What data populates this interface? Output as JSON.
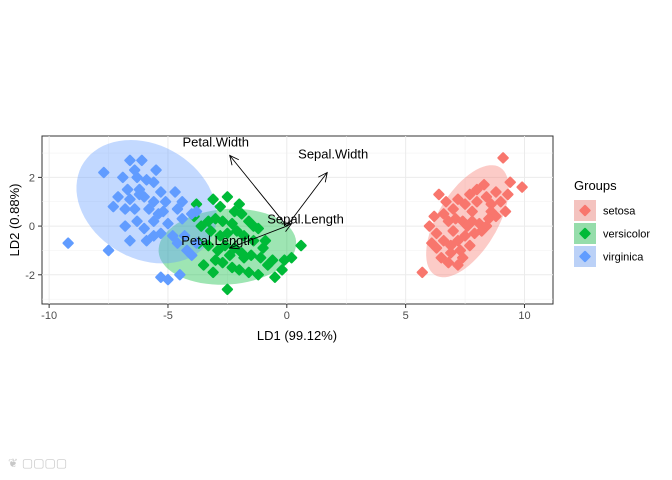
{
  "chart_data": {
    "type": "scatter",
    "xlabel": "LD1 (99.12%)",
    "ylabel": "LD2 (0.88%)",
    "xlim": [
      -10.3,
      11.2
    ],
    "ylim": [
      -3.2,
      3.7
    ],
    "xticks": [
      -10,
      -5,
      0,
      5,
      10
    ],
    "yticks": [
      -2,
      0,
      2
    ],
    "grid": true,
    "legend": {
      "title": "Groups",
      "placement": "right"
    },
    "colors": {
      "setosa": "#F8766D",
      "versicolor": "#00BA38",
      "virginica": "#619CFF"
    },
    "series": [
      {
        "name": "setosa",
        "color": "#F8766D",
        "ellipse": {
          "cx": 7.6,
          "cy": 0.2,
          "rx": 2.6,
          "ry": 1.25,
          "angle": 58
        },
        "points": [
          [
            9.1,
            2.8
          ],
          [
            9.9,
            1.6
          ],
          [
            9.4,
            1.8
          ],
          [
            8.8,
            1.4
          ],
          [
            8.3,
            1.7
          ],
          [
            8.4,
            1.2
          ],
          [
            9.0,
            1.0
          ],
          [
            8.6,
            0.6
          ],
          [
            8.0,
            1.0
          ],
          [
            7.8,
            0.6
          ],
          [
            7.5,
            0.9
          ],
          [
            7.2,
            1.1
          ],
          [
            7.0,
            0.7
          ],
          [
            6.7,
            1.0
          ],
          [
            6.4,
            1.3
          ],
          [
            6.2,
            0.4
          ],
          [
            6.6,
            0.5
          ],
          [
            6.8,
            0.2
          ],
          [
            7.1,
            0.3
          ],
          [
            7.4,
            0.2
          ],
          [
            7.8,
            0.2
          ],
          [
            8.1,
            0.1
          ],
          [
            8.4,
            0.0
          ],
          [
            8.8,
            0.4
          ],
          [
            9.2,
            0.6
          ],
          [
            8.2,
            -0.2
          ],
          [
            7.9,
            -0.3
          ],
          [
            7.5,
            -0.4
          ],
          [
            7.2,
            -0.6
          ],
          [
            6.9,
            -0.8
          ],
          [
            6.6,
            -0.6
          ],
          [
            6.3,
            -0.9
          ],
          [
            6.5,
            -1.3
          ],
          [
            6.9,
            -1.1
          ],
          [
            7.3,
            -1.0
          ],
          [
            7.7,
            -0.8
          ],
          [
            7.4,
            -1.3
          ],
          [
            6.8,
            -1.5
          ],
          [
            5.7,
            -1.9
          ],
          [
            6.1,
            -0.7
          ],
          [
            8.6,
            0.9
          ],
          [
            9.3,
            1.3
          ],
          [
            8.0,
            1.5
          ],
          [
            7.6,
            0.0
          ],
          [
            7.0,
            -0.2
          ],
          [
            6.3,
            -0.3
          ],
          [
            6.0,
            0.0
          ],
          [
            7.2,
            -1.6
          ],
          [
            8.5,
            0.3
          ],
          [
            7.7,
            1.3
          ]
        ]
      },
      {
        "name": "versicolor",
        "color": "#00BA38",
        "ellipse": {
          "cx": -2.5,
          "cy": -0.85,
          "rx": 2.9,
          "ry": 1.55,
          "angle": 4
        },
        "points": [
          [
            -2.5,
            1.2
          ],
          [
            -3.1,
            1.1
          ],
          [
            -3.8,
            0.9
          ],
          [
            -2.2,
            0.6
          ],
          [
            -1.9,
            0.5
          ],
          [
            -3.3,
            0.2
          ],
          [
            -3.0,
            0.3
          ],
          [
            -2.7,
            0.2
          ],
          [
            -2.3,
            0.1
          ],
          [
            -1.6,
            0.2
          ],
          [
            -1.2,
            -0.1
          ],
          [
            -3.6,
            0.0
          ],
          [
            -3.2,
            -0.2
          ],
          [
            -2.8,
            -0.4
          ],
          [
            -2.5,
            -0.3
          ],
          [
            -2.1,
            -0.2
          ],
          [
            -1.8,
            -0.4
          ],
          [
            -1.4,
            -0.6
          ],
          [
            -1.0,
            -0.9
          ],
          [
            0.6,
            -0.8
          ],
          [
            -3.7,
            -0.7
          ],
          [
            -3.3,
            -0.8
          ],
          [
            -2.9,
            -1.0
          ],
          [
            -2.6,
            -0.8
          ],
          [
            -2.2,
            -0.9
          ],
          [
            -1.9,
            -1.1
          ],
          [
            -1.5,
            -1.2
          ],
          [
            -1.1,
            -1.3
          ],
          [
            -0.6,
            -1.4
          ],
          [
            -0.1,
            -1.4
          ],
          [
            0.2,
            -1.3
          ],
          [
            -3.5,
            -1.6
          ],
          [
            -3.0,
            -1.4
          ],
          [
            -2.7,
            -1.5
          ],
          [
            -2.3,
            -1.7
          ],
          [
            -2.0,
            -1.8
          ],
          [
            -1.6,
            -1.9
          ],
          [
            -1.2,
            -2.0
          ],
          [
            -0.5,
            -2.1
          ],
          [
            -0.2,
            -1.8
          ],
          [
            -2.5,
            -2.6
          ],
          [
            -1.8,
            -1.3
          ],
          [
            -3.9,
            0.4
          ],
          [
            -2.0,
            0.9
          ],
          [
            -1.4,
            0.0
          ],
          [
            -0.9,
            -0.6
          ],
          [
            -3.1,
            -1.9
          ],
          [
            -2.4,
            -1.2
          ],
          [
            -0.8,
            -1.6
          ],
          [
            -2.8,
            0.8
          ]
        ]
      },
      {
        "name": "virginica",
        "color": "#619CFF",
        "ellipse": {
          "cx": -5.9,
          "cy": 1.0,
          "rx": 3.1,
          "ry": 2.35,
          "angle": -28
        },
        "points": [
          [
            -6.6,
            2.7
          ],
          [
            -6.1,
            2.7
          ],
          [
            -6.4,
            2.3
          ],
          [
            -5.5,
            2.3
          ],
          [
            -7.7,
            2.2
          ],
          [
            -6.9,
            2.0
          ],
          [
            -6.3,
            2.0
          ],
          [
            -5.9,
            1.9
          ],
          [
            -5.6,
            1.8
          ],
          [
            -6.7,
            1.5
          ],
          [
            -6.2,
            1.5
          ],
          [
            -5.3,
            1.4
          ],
          [
            -4.7,
            1.4
          ],
          [
            -7.1,
            1.2
          ],
          [
            -6.6,
            1.1
          ],
          [
            -6.0,
            1.2
          ],
          [
            -5.6,
            1.0
          ],
          [
            -5.1,
            1.0
          ],
          [
            -4.4,
            1.0
          ],
          [
            -7.3,
            0.8
          ],
          [
            -6.8,
            0.7
          ],
          [
            -6.4,
            0.7
          ],
          [
            -5.8,
            0.7
          ],
          [
            -5.2,
            0.6
          ],
          [
            -4.6,
            0.7
          ],
          [
            -3.8,
            0.6
          ],
          [
            -6.3,
            0.2
          ],
          [
            -5.6,
            0.2
          ],
          [
            -5.0,
            0.1
          ],
          [
            -4.4,
            0.3
          ],
          [
            -4.0,
            0.5
          ],
          [
            -6.8,
            0.0
          ],
          [
            -6.0,
            -0.1
          ],
          [
            -5.3,
            -0.3
          ],
          [
            -4.8,
            -0.4
          ],
          [
            -4.3,
            -0.4
          ],
          [
            -5.6,
            -0.4
          ],
          [
            -6.6,
            -0.6
          ],
          [
            -5.9,
            -0.6
          ],
          [
            -4.6,
            -0.7
          ],
          [
            -3.8,
            -0.7
          ],
          [
            -4.2,
            -1.0
          ],
          [
            -7.5,
            -1.0
          ],
          [
            -4.0,
            -1.2
          ],
          [
            -4.5,
            -2.0
          ],
          [
            -5.3,
            -2.1
          ],
          [
            -5.0,
            -2.2
          ],
          [
            -9.2,
            -0.7
          ],
          [
            -6.2,
            1.3
          ],
          [
            -5.4,
            0.5
          ]
        ]
      }
    ],
    "vectors": [
      {
        "name": "Petal.Width",
        "x": -2.4,
        "y": 2.9
      },
      {
        "name": "Sepal.Width",
        "x": 1.7,
        "y": 2.2
      },
      {
        "name": "Sepal.Length",
        "x": 0.2,
        "y": 0.1
      },
      {
        "name": "Petal.Length",
        "x": -2.4,
        "y": -0.9
      }
    ],
    "vector_origin": [
      0,
      0
    ]
  }
}
